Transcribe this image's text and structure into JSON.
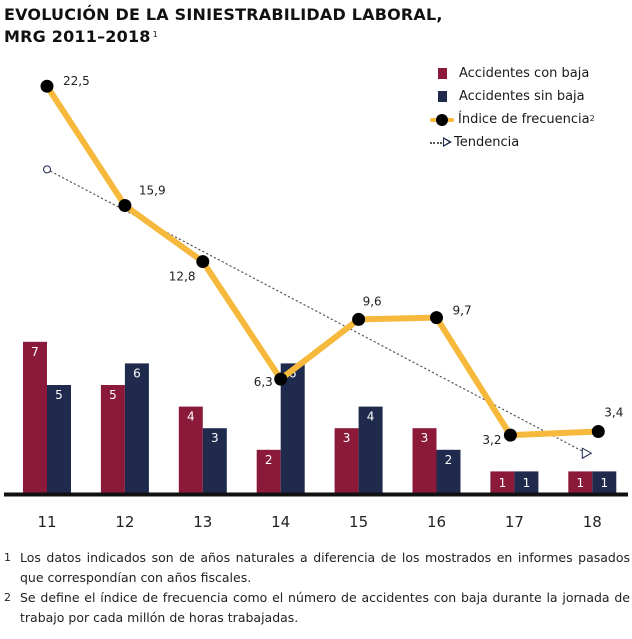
{
  "title_line1": "EVOLUCIÓN DE LA SINIESTRABILIDAD LABORAL,",
  "title_line2": "MRG 2011–2018",
  "title_note_ref": "1",
  "colors": {
    "con_baja": "#8b1a3a",
    "sin_baja": "#1f2a4d",
    "frecuencia": "#f6b93b",
    "marker": "#000000",
    "tendencia": "#555555",
    "axis": "#111111"
  },
  "legend": {
    "con_baja": "Accidentes con baja",
    "sin_baja": "Accidentes sin baja",
    "frecuencia": "Índice de frecuencia",
    "frecuencia_note_ref": "2",
    "tendencia": "Tendencia"
  },
  "chart_data": {
    "type": "bar",
    "title": "EVOLUCIÓN DE LA SINIESTRABILIDAD LABORAL, MRG 2011–2018",
    "categories": [
      "11",
      "12",
      "13",
      "14",
      "15",
      "16",
      "17",
      "18"
    ],
    "series": [
      {
        "name": "Accidentes con baja",
        "type": "bar",
        "values": [
          7,
          5,
          4,
          2,
          3,
          3,
          1,
          1
        ]
      },
      {
        "name": "Accidentes sin baja",
        "type": "bar",
        "values": [
          5,
          6,
          3,
          6,
          4,
          2,
          1,
          1
        ]
      },
      {
        "name": "Índice de frecuencia",
        "type": "line",
        "values": [
          22.5,
          15.9,
          12.8,
          6.3,
          9.6,
          9.7,
          3.2,
          3.4
        ],
        "labels": [
          "22,5",
          "15,9",
          "12,8",
          "6,3",
          "9,6",
          "9,7",
          "3,2",
          "3,4"
        ]
      },
      {
        "name": "Tendencia",
        "type": "line-dotted",
        "start": 17.9,
        "end": 2.2
      }
    ],
    "bar_ylim": [
      0,
      20
    ],
    "index_ylim": [
      0,
      25
    ],
    "xlabel": "",
    "ylabel": "",
    "grid": false,
    "legend": "top-right"
  },
  "notes": [
    {
      "num": "1",
      "text": "Los datos indicados son de años naturales a diferencia de los mostrados en informes pasados que correspondían con años fiscales."
    },
    {
      "num": "2",
      "text": "Se define el índice de frecuencia como el número de accidentes con baja durante la jornada de trabajo por cada millón de horas trabajadas."
    }
  ]
}
